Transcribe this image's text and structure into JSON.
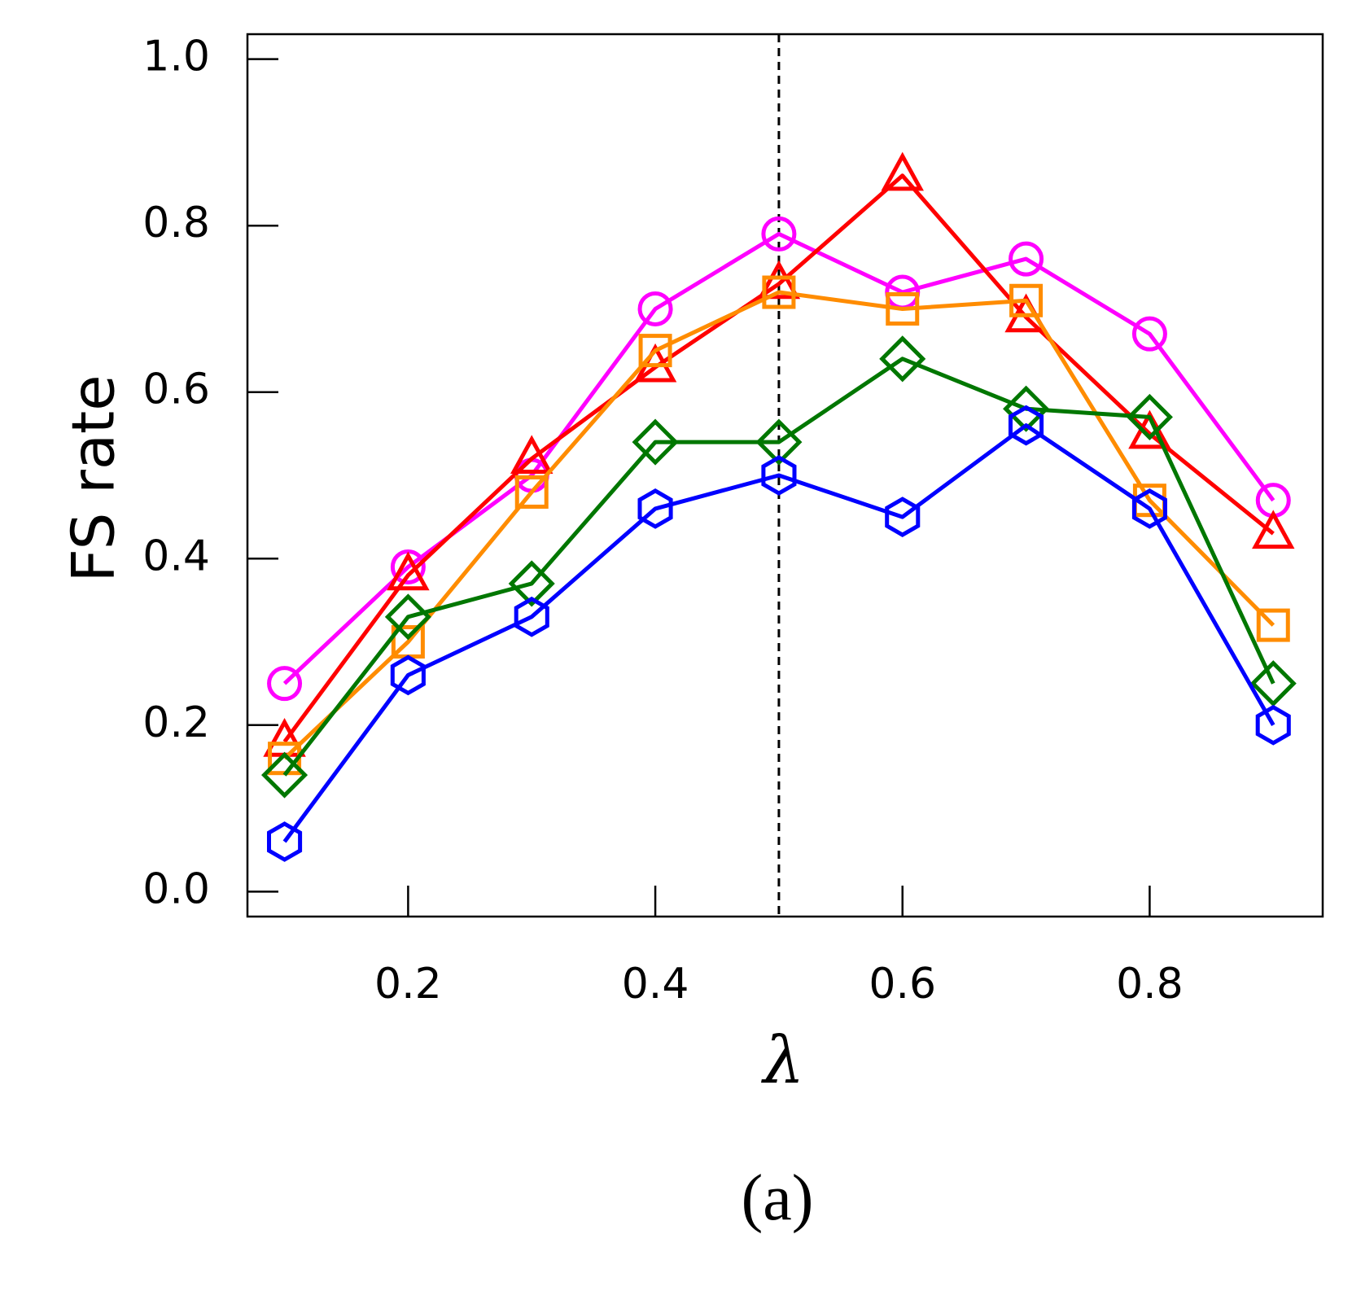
{
  "chart_data": {
    "type": "line",
    "xlabel": "λ",
    "ylabel": "FS rate",
    "caption": "(a)",
    "xlim": [
      0.07,
      0.94
    ],
    "ylim": [
      -0.03,
      1.03
    ],
    "xticks": [
      0.2,
      0.4,
      0.6,
      0.8
    ],
    "xtick_labels": [
      "0.2",
      "0.4",
      "0.6",
      "0.8"
    ],
    "yticks": [
      0.0,
      0.2,
      0.4,
      0.6,
      0.8,
      1.0
    ],
    "ytick_labels": [
      "0.0",
      "0.2",
      "0.4",
      "0.6",
      "0.8",
      "1.0"
    ],
    "reference_line_x": 0.5,
    "grid": false,
    "x": [
      0.1,
      0.2,
      0.3,
      0.4,
      0.5,
      0.6,
      0.7,
      0.8,
      0.9
    ],
    "series": [
      {
        "name": "magenta-circle",
        "color": "#ff00ff",
        "marker": "circle",
        "values": [
          0.25,
          0.39,
          0.5,
          0.7,
          0.79,
          0.72,
          0.76,
          0.67,
          0.47
        ]
      },
      {
        "name": "red-triangle",
        "color": "#ff0000",
        "marker": "triangle",
        "values": [
          0.18,
          0.38,
          0.52,
          0.63,
          0.73,
          0.86,
          0.69,
          0.55,
          0.43
        ]
      },
      {
        "name": "orange-square",
        "color": "#ff8c00",
        "marker": "square",
        "values": [
          0.16,
          0.3,
          0.48,
          0.65,
          0.72,
          0.7,
          0.71,
          0.47,
          0.32
        ]
      },
      {
        "name": "green-diamond",
        "color": "#007700",
        "marker": "diamond",
        "values": [
          0.14,
          0.33,
          0.37,
          0.54,
          0.54,
          0.64,
          0.58,
          0.57,
          0.25
        ]
      },
      {
        "name": "blue-hexagon",
        "color": "#0000ff",
        "marker": "hexagon",
        "values": [
          0.06,
          0.26,
          0.33,
          0.46,
          0.5,
          0.45,
          0.56,
          0.46,
          0.2
        ]
      }
    ]
  }
}
